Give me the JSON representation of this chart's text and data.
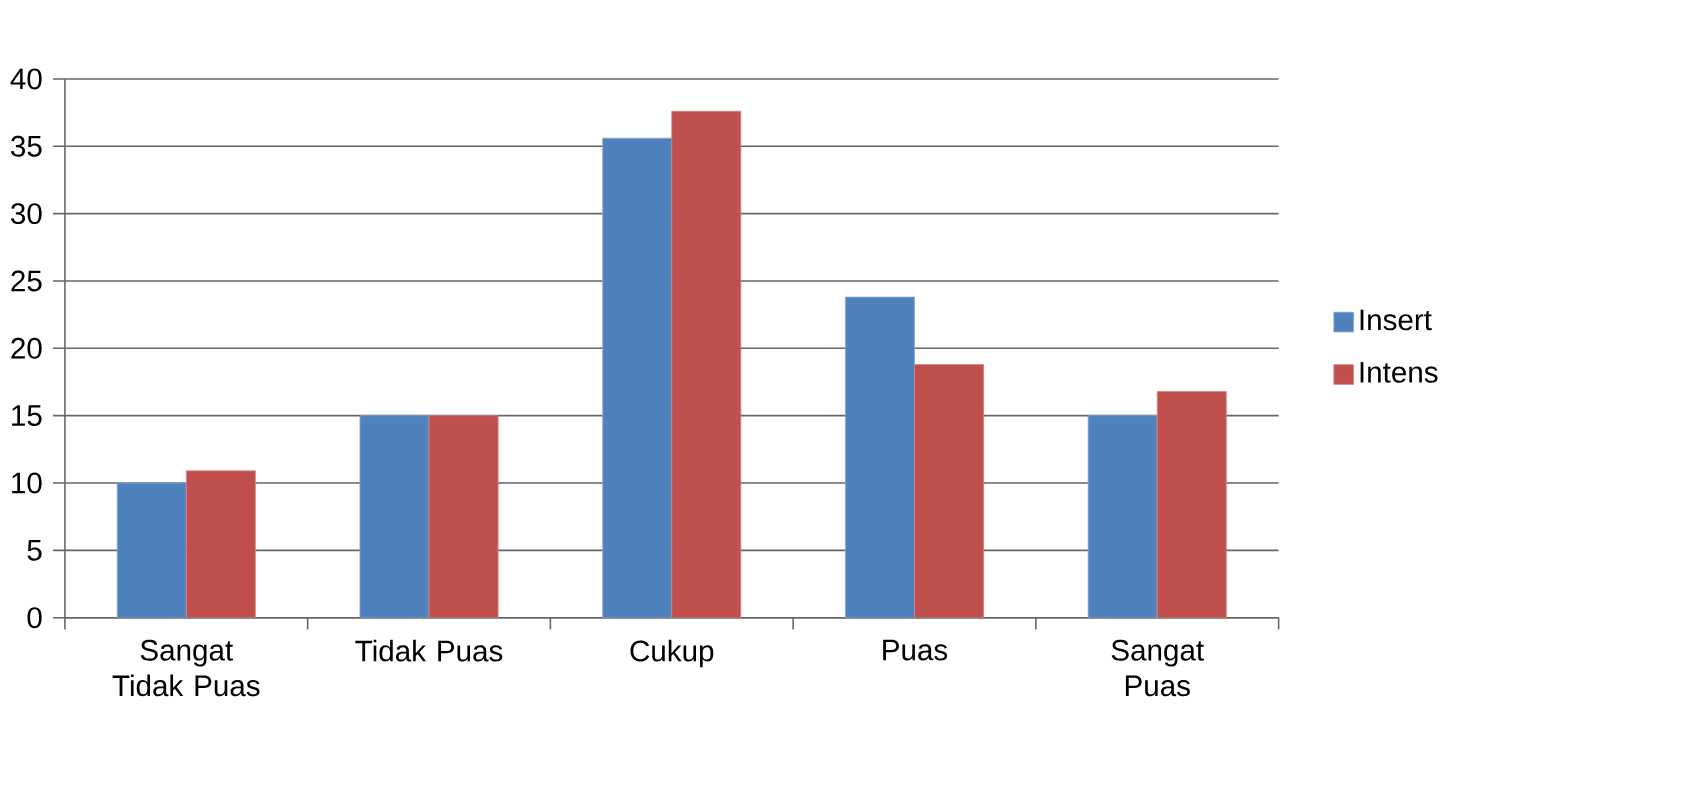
{
  "chart_data": {
    "type": "bar",
    "categories": [
      "Sangat Tidak Puas",
      "Tidak Puas",
      "Cukup",
      "Puas",
      "Sangat Puas"
    ],
    "series": [
      {
        "name": "Insert",
        "color": "#4f81bd",
        "values": [
          10,
          15,
          35.6,
          23.8,
          15
        ]
      },
      {
        "name": "Intens",
        "color": "#c0504d",
        "values": [
          10.9,
          15,
          37.6,
          18.8,
          16.8
        ]
      }
    ],
    "ylim": [
      0,
      40
    ],
    "yticks": [
      0,
      5,
      10,
      15,
      20,
      25,
      30,
      35,
      40
    ],
    "grid": "y",
    "legend": "right"
  }
}
